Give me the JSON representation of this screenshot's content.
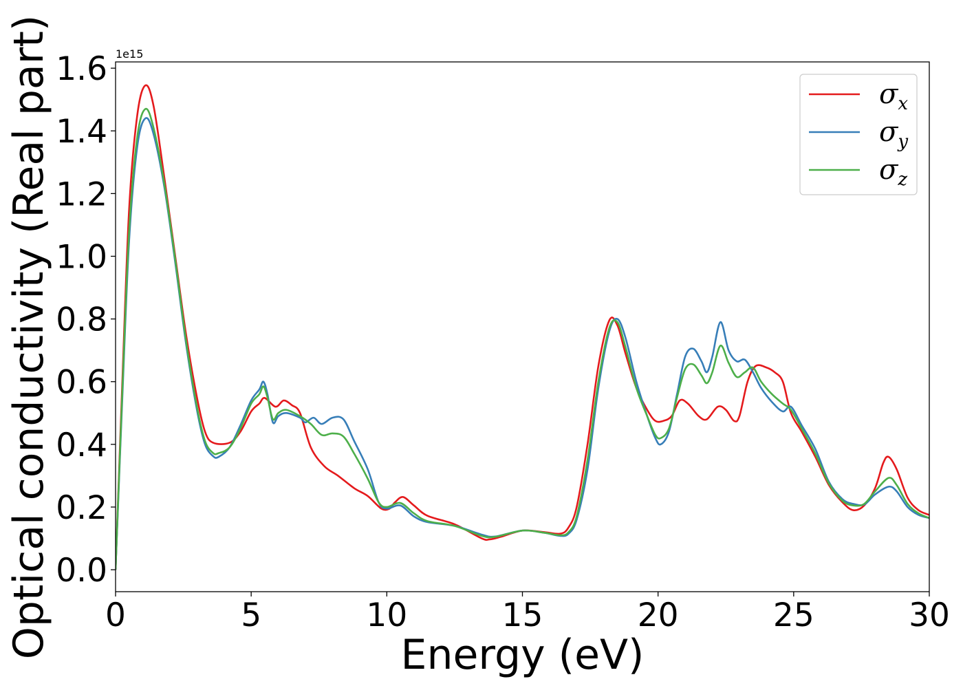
{
  "chart_data": {
    "type": "line",
    "xlabel": "Energy (eV)",
    "ylabel": "Optical conductivity (Real part)",
    "y_offset_text": "1e15",
    "xlim": [
      0,
      30
    ],
    "ylim": [
      -0.07,
      1.62
    ],
    "x_ticks": [
      "0",
      "5",
      "10",
      "15",
      "20",
      "25",
      "30"
    ],
    "y_ticks": [
      "0.0",
      "0.2",
      "0.4",
      "0.6",
      "0.8",
      "1.0",
      "1.2",
      "1.4",
      "1.6"
    ],
    "grid": false,
    "legend_position": "top-right",
    "series": [
      {
        "name": "σx",
        "symbol": "σ",
        "subscript": "x",
        "color": "#e41a1c",
        "points": [
          [
            0,
            0
          ],
          [
            0.25,
            0.6
          ],
          [
            0.5,
            1.15
          ],
          [
            0.8,
            1.45
          ],
          [
            1.1,
            1.545
          ],
          [
            1.4,
            1.48
          ],
          [
            1.8,
            1.25
          ],
          [
            2.2,
            1.0
          ],
          [
            2.6,
            0.75
          ],
          [
            3.0,
            0.55
          ],
          [
            3.3,
            0.44
          ],
          [
            3.6,
            0.405
          ],
          [
            4.2,
            0.405
          ],
          [
            4.6,
            0.44
          ],
          [
            5.0,
            0.505
          ],
          [
            5.3,
            0.53
          ],
          [
            5.5,
            0.548
          ],
          [
            5.9,
            0.52
          ],
          [
            6.2,
            0.54
          ],
          [
            6.5,
            0.525
          ],
          [
            6.8,
            0.5
          ],
          [
            7.2,
            0.39
          ],
          [
            7.7,
            0.33
          ],
          [
            8.2,
            0.3
          ],
          [
            8.8,
            0.26
          ],
          [
            9.3,
            0.235
          ],
          [
            9.8,
            0.195
          ],
          [
            10.1,
            0.195
          ],
          [
            10.3,
            0.215
          ],
          [
            10.6,
            0.232
          ],
          [
            11.0,
            0.205
          ],
          [
            11.5,
            0.172
          ],
          [
            12.5,
            0.145
          ],
          [
            13.5,
            0.1
          ],
          [
            13.8,
            0.097
          ],
          [
            14.2,
            0.105
          ],
          [
            15.0,
            0.125
          ],
          [
            15.8,
            0.12
          ],
          [
            16.4,
            0.115
          ],
          [
            16.7,
            0.135
          ],
          [
            17.0,
            0.2
          ],
          [
            17.4,
            0.4
          ],
          [
            17.8,
            0.65
          ],
          [
            18.2,
            0.795
          ],
          [
            18.5,
            0.78
          ],
          [
            18.8,
            0.69
          ],
          [
            19.2,
            0.58
          ],
          [
            19.6,
            0.51
          ],
          [
            19.9,
            0.475
          ],
          [
            20.2,
            0.475
          ],
          [
            20.5,
            0.49
          ],
          [
            20.8,
            0.54
          ],
          [
            21.1,
            0.53
          ],
          [
            21.5,
            0.49
          ],
          [
            21.8,
            0.48
          ],
          [
            22.2,
            0.52
          ],
          [
            22.5,
            0.51
          ],
          [
            22.8,
            0.475
          ],
          [
            23.0,
            0.49
          ],
          [
            23.3,
            0.6
          ],
          [
            23.6,
            0.65
          ],
          [
            24.0,
            0.645
          ],
          [
            24.3,
            0.63
          ],
          [
            24.6,
            0.6
          ],
          [
            24.9,
            0.5
          ],
          [
            25.3,
            0.44
          ],
          [
            25.8,
            0.36
          ],
          [
            26.3,
            0.27
          ],
          [
            26.8,
            0.215
          ],
          [
            27.2,
            0.19
          ],
          [
            27.6,
            0.205
          ],
          [
            28.0,
            0.26
          ],
          [
            28.3,
            0.34
          ],
          [
            28.5,
            0.36
          ],
          [
            28.8,
            0.32
          ],
          [
            29.2,
            0.23
          ],
          [
            29.6,
            0.19
          ],
          [
            30.0,
            0.175
          ]
        ]
      },
      {
        "name": "σy",
        "symbol": "σ",
        "subscript": "y",
        "color": "#377eb8",
        "points": [
          [
            0,
            0
          ],
          [
            0.25,
            0.55
          ],
          [
            0.5,
            1.05
          ],
          [
            0.8,
            1.35
          ],
          [
            1.1,
            1.44
          ],
          [
            1.4,
            1.39
          ],
          [
            1.8,
            1.22
          ],
          [
            2.2,
            0.98
          ],
          [
            2.6,
            0.72
          ],
          [
            3.0,
            0.51
          ],
          [
            3.3,
            0.4
          ],
          [
            3.6,
            0.362
          ],
          [
            3.8,
            0.36
          ],
          [
            4.2,
            0.39
          ],
          [
            4.6,
            0.46
          ],
          [
            5.0,
            0.54
          ],
          [
            5.3,
            0.575
          ],
          [
            5.45,
            0.6
          ],
          [
            5.6,
            0.56
          ],
          [
            5.8,
            0.47
          ],
          [
            6.0,
            0.49
          ],
          [
            6.3,
            0.5
          ],
          [
            6.8,
            0.485
          ],
          [
            7.0,
            0.47
          ],
          [
            7.3,
            0.485
          ],
          [
            7.6,
            0.465
          ],
          [
            8.0,
            0.485
          ],
          [
            8.4,
            0.48
          ],
          [
            8.8,
            0.41
          ],
          [
            9.3,
            0.32
          ],
          [
            9.7,
            0.215
          ],
          [
            10.0,
            0.195
          ],
          [
            10.5,
            0.205
          ],
          [
            11.0,
            0.17
          ],
          [
            11.5,
            0.152
          ],
          [
            12.5,
            0.14
          ],
          [
            13.5,
            0.112
          ],
          [
            14.0,
            0.106
          ],
          [
            15.0,
            0.125
          ],
          [
            15.8,
            0.118
          ],
          [
            16.4,
            0.108
          ],
          [
            16.7,
            0.115
          ],
          [
            17.0,
            0.16
          ],
          [
            17.4,
            0.32
          ],
          [
            17.8,
            0.58
          ],
          [
            18.2,
            0.76
          ],
          [
            18.5,
            0.8
          ],
          [
            18.8,
            0.74
          ],
          [
            19.2,
            0.6
          ],
          [
            19.6,
            0.49
          ],
          [
            19.9,
            0.42
          ],
          [
            20.1,
            0.4
          ],
          [
            20.4,
            0.44
          ],
          [
            20.7,
            0.56
          ],
          [
            21.0,
            0.68
          ],
          [
            21.3,
            0.705
          ],
          [
            21.6,
            0.665
          ],
          [
            21.8,
            0.63
          ],
          [
            22.0,
            0.68
          ],
          [
            22.3,
            0.79
          ],
          [
            22.6,
            0.7
          ],
          [
            22.9,
            0.665
          ],
          [
            23.2,
            0.67
          ],
          [
            23.5,
            0.63
          ],
          [
            23.8,
            0.58
          ],
          [
            24.2,
            0.535
          ],
          [
            24.6,
            0.505
          ],
          [
            24.9,
            0.52
          ],
          [
            25.3,
            0.46
          ],
          [
            25.8,
            0.385
          ],
          [
            26.3,
            0.28
          ],
          [
            26.8,
            0.225
          ],
          [
            27.2,
            0.21
          ],
          [
            27.6,
            0.208
          ],
          [
            28.0,
            0.24
          ],
          [
            28.5,
            0.265
          ],
          [
            28.8,
            0.25
          ],
          [
            29.2,
            0.2
          ],
          [
            29.6,
            0.175
          ],
          [
            30.0,
            0.165
          ]
        ]
      },
      {
        "name": "σz",
        "symbol": "σ",
        "subscript": "z",
        "color": "#4daf4a",
        "points": [
          [
            0,
            0
          ],
          [
            0.25,
            0.57
          ],
          [
            0.5,
            1.08
          ],
          [
            0.8,
            1.38
          ],
          [
            1.1,
            1.47
          ],
          [
            1.4,
            1.41
          ],
          [
            1.8,
            1.23
          ],
          [
            2.2,
            0.99
          ],
          [
            2.6,
            0.73
          ],
          [
            3.0,
            0.52
          ],
          [
            3.3,
            0.41
          ],
          [
            3.6,
            0.372
          ],
          [
            3.8,
            0.372
          ],
          [
            4.2,
            0.39
          ],
          [
            4.6,
            0.45
          ],
          [
            5.0,
            0.53
          ],
          [
            5.3,
            0.56
          ],
          [
            5.45,
            0.585
          ],
          [
            5.6,
            0.55
          ],
          [
            5.8,
            0.48
          ],
          [
            6.0,
            0.5
          ],
          [
            6.3,
            0.51
          ],
          [
            6.8,
            0.49
          ],
          [
            7.2,
            0.465
          ],
          [
            7.6,
            0.43
          ],
          [
            8.0,
            0.435
          ],
          [
            8.4,
            0.425
          ],
          [
            8.8,
            0.37
          ],
          [
            9.3,
            0.29
          ],
          [
            9.7,
            0.215
          ],
          [
            10.0,
            0.2
          ],
          [
            10.5,
            0.213
          ],
          [
            11.0,
            0.18
          ],
          [
            11.5,
            0.155
          ],
          [
            12.5,
            0.14
          ],
          [
            13.5,
            0.108
          ],
          [
            14.0,
            0.105
          ],
          [
            15.0,
            0.125
          ],
          [
            15.8,
            0.118
          ],
          [
            16.4,
            0.11
          ],
          [
            16.7,
            0.12
          ],
          [
            17.0,
            0.17
          ],
          [
            17.4,
            0.35
          ],
          [
            17.8,
            0.6
          ],
          [
            18.2,
            0.77
          ],
          [
            18.5,
            0.79
          ],
          [
            18.8,
            0.71
          ],
          [
            19.2,
            0.58
          ],
          [
            19.6,
            0.49
          ],
          [
            19.9,
            0.43
          ],
          [
            20.1,
            0.42
          ],
          [
            20.4,
            0.45
          ],
          [
            20.7,
            0.55
          ],
          [
            21.0,
            0.64
          ],
          [
            21.3,
            0.655
          ],
          [
            21.6,
            0.62
          ],
          [
            21.8,
            0.595
          ],
          [
            22.0,
            0.63
          ],
          [
            22.3,
            0.715
          ],
          [
            22.6,
            0.66
          ],
          [
            22.9,
            0.615
          ],
          [
            23.2,
            0.63
          ],
          [
            23.5,
            0.645
          ],
          [
            23.8,
            0.6
          ],
          [
            24.2,
            0.56
          ],
          [
            24.6,
            0.53
          ],
          [
            24.9,
            0.51
          ],
          [
            25.3,
            0.45
          ],
          [
            25.8,
            0.37
          ],
          [
            26.3,
            0.275
          ],
          [
            26.8,
            0.22
          ],
          [
            27.2,
            0.205
          ],
          [
            27.6,
            0.21
          ],
          [
            28.0,
            0.25
          ],
          [
            28.5,
            0.293
          ],
          [
            28.8,
            0.27
          ],
          [
            29.2,
            0.21
          ],
          [
            29.6,
            0.18
          ],
          [
            30.0,
            0.165
          ]
        ]
      }
    ]
  }
}
